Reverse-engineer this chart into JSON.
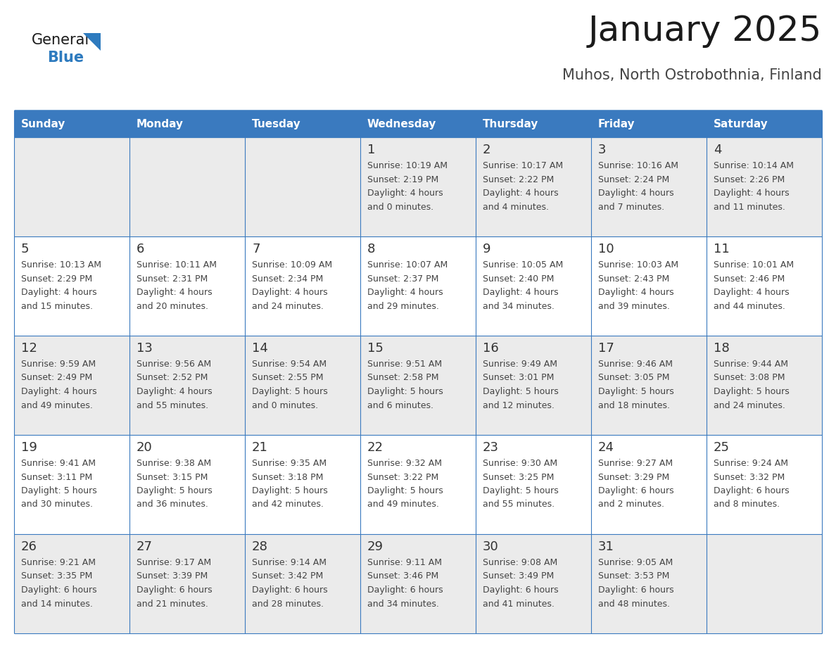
{
  "title": "January 2025",
  "subtitle": "Muhos, North Ostrobothnia, Finland",
  "header_color": "#3a7abf",
  "header_text_color": "#ffffff",
  "row_colors": [
    "#ebebeb",
    "#ffffff"
  ],
  "border_color": "#3a7abf",
  "text_color": "#444444",
  "day_number_color": "#333333",
  "days_of_week": [
    "Sunday",
    "Monday",
    "Tuesday",
    "Wednesday",
    "Thursday",
    "Friday",
    "Saturday"
  ],
  "weeks": [
    [
      {
        "day": "",
        "sunrise": "",
        "sunset": "",
        "daylight": ""
      },
      {
        "day": "",
        "sunrise": "",
        "sunset": "",
        "daylight": ""
      },
      {
        "day": "",
        "sunrise": "",
        "sunset": "",
        "daylight": ""
      },
      {
        "day": "1",
        "sunrise": "10:19 AM",
        "sunset": "2:19 PM",
        "daylight": "4 hours",
        "daylight2": "and 0 minutes."
      },
      {
        "day": "2",
        "sunrise": "10:17 AM",
        "sunset": "2:22 PM",
        "daylight": "4 hours",
        "daylight2": "and 4 minutes."
      },
      {
        "day": "3",
        "sunrise": "10:16 AM",
        "sunset": "2:24 PM",
        "daylight": "4 hours",
        "daylight2": "and 7 minutes."
      },
      {
        "day": "4",
        "sunrise": "10:14 AM",
        "sunset": "2:26 PM",
        "daylight": "4 hours",
        "daylight2": "and 11 minutes."
      }
    ],
    [
      {
        "day": "5",
        "sunrise": "10:13 AM",
        "sunset": "2:29 PM",
        "daylight": "4 hours",
        "daylight2": "and 15 minutes."
      },
      {
        "day": "6",
        "sunrise": "10:11 AM",
        "sunset": "2:31 PM",
        "daylight": "4 hours",
        "daylight2": "and 20 minutes."
      },
      {
        "day": "7",
        "sunrise": "10:09 AM",
        "sunset": "2:34 PM",
        "daylight": "4 hours",
        "daylight2": "and 24 minutes."
      },
      {
        "day": "8",
        "sunrise": "10:07 AM",
        "sunset": "2:37 PM",
        "daylight": "4 hours",
        "daylight2": "and 29 minutes."
      },
      {
        "day": "9",
        "sunrise": "10:05 AM",
        "sunset": "2:40 PM",
        "daylight": "4 hours",
        "daylight2": "and 34 minutes."
      },
      {
        "day": "10",
        "sunrise": "10:03 AM",
        "sunset": "2:43 PM",
        "daylight": "4 hours",
        "daylight2": "and 39 minutes."
      },
      {
        "day": "11",
        "sunrise": "10:01 AM",
        "sunset": "2:46 PM",
        "daylight": "4 hours",
        "daylight2": "and 44 minutes."
      }
    ],
    [
      {
        "day": "12",
        "sunrise": "9:59 AM",
        "sunset": "2:49 PM",
        "daylight": "4 hours",
        "daylight2": "and 49 minutes."
      },
      {
        "day": "13",
        "sunrise": "9:56 AM",
        "sunset": "2:52 PM",
        "daylight": "4 hours",
        "daylight2": "and 55 minutes."
      },
      {
        "day": "14",
        "sunrise": "9:54 AM",
        "sunset": "2:55 PM",
        "daylight": "5 hours",
        "daylight2": "and 0 minutes."
      },
      {
        "day": "15",
        "sunrise": "9:51 AM",
        "sunset": "2:58 PM",
        "daylight": "5 hours",
        "daylight2": "and 6 minutes."
      },
      {
        "day": "16",
        "sunrise": "9:49 AM",
        "sunset": "3:01 PM",
        "daylight": "5 hours",
        "daylight2": "and 12 minutes."
      },
      {
        "day": "17",
        "sunrise": "9:46 AM",
        "sunset": "3:05 PM",
        "daylight": "5 hours",
        "daylight2": "and 18 minutes."
      },
      {
        "day": "18",
        "sunrise": "9:44 AM",
        "sunset": "3:08 PM",
        "daylight": "5 hours",
        "daylight2": "and 24 minutes."
      }
    ],
    [
      {
        "day": "19",
        "sunrise": "9:41 AM",
        "sunset": "3:11 PM",
        "daylight": "5 hours",
        "daylight2": "and 30 minutes."
      },
      {
        "day": "20",
        "sunrise": "9:38 AM",
        "sunset": "3:15 PM",
        "daylight": "5 hours",
        "daylight2": "and 36 minutes."
      },
      {
        "day": "21",
        "sunrise": "9:35 AM",
        "sunset": "3:18 PM",
        "daylight": "5 hours",
        "daylight2": "and 42 minutes."
      },
      {
        "day": "22",
        "sunrise": "9:32 AM",
        "sunset": "3:22 PM",
        "daylight": "5 hours",
        "daylight2": "and 49 minutes."
      },
      {
        "day": "23",
        "sunrise": "9:30 AM",
        "sunset": "3:25 PM",
        "daylight": "5 hours",
        "daylight2": "and 55 minutes."
      },
      {
        "day": "24",
        "sunrise": "9:27 AM",
        "sunset": "3:29 PM",
        "daylight": "6 hours",
        "daylight2": "and 2 minutes."
      },
      {
        "day": "25",
        "sunrise": "9:24 AM",
        "sunset": "3:32 PM",
        "daylight": "6 hours",
        "daylight2": "and 8 minutes."
      }
    ],
    [
      {
        "day": "26",
        "sunrise": "9:21 AM",
        "sunset": "3:35 PM",
        "daylight": "6 hours",
        "daylight2": "and 14 minutes."
      },
      {
        "day": "27",
        "sunrise": "9:17 AM",
        "sunset": "3:39 PM",
        "daylight": "6 hours",
        "daylight2": "and 21 minutes."
      },
      {
        "day": "28",
        "sunrise": "9:14 AM",
        "sunset": "3:42 PM",
        "daylight": "6 hours",
        "daylight2": "and 28 minutes."
      },
      {
        "day": "29",
        "sunrise": "9:11 AM",
        "sunset": "3:46 PM",
        "daylight": "6 hours",
        "daylight2": "and 34 minutes."
      },
      {
        "day": "30",
        "sunrise": "9:08 AM",
        "sunset": "3:49 PM",
        "daylight": "6 hours",
        "daylight2": "and 41 minutes."
      },
      {
        "day": "31",
        "sunrise": "9:05 AM",
        "sunset": "3:53 PM",
        "daylight": "6 hours",
        "daylight2": "and 48 minutes."
      },
      {
        "day": "",
        "sunrise": "",
        "sunset": "",
        "daylight": "",
        "daylight2": ""
      }
    ]
  ],
  "logo_text1": "General",
  "logo_text2": "Blue",
  "logo_color1": "#1a1a1a",
  "logo_color2": "#2e7bbf",
  "title_fontsize": 36,
  "subtitle_fontsize": 15,
  "header_fontsize": 11,
  "day_num_fontsize": 13,
  "cell_text_fontsize": 9
}
